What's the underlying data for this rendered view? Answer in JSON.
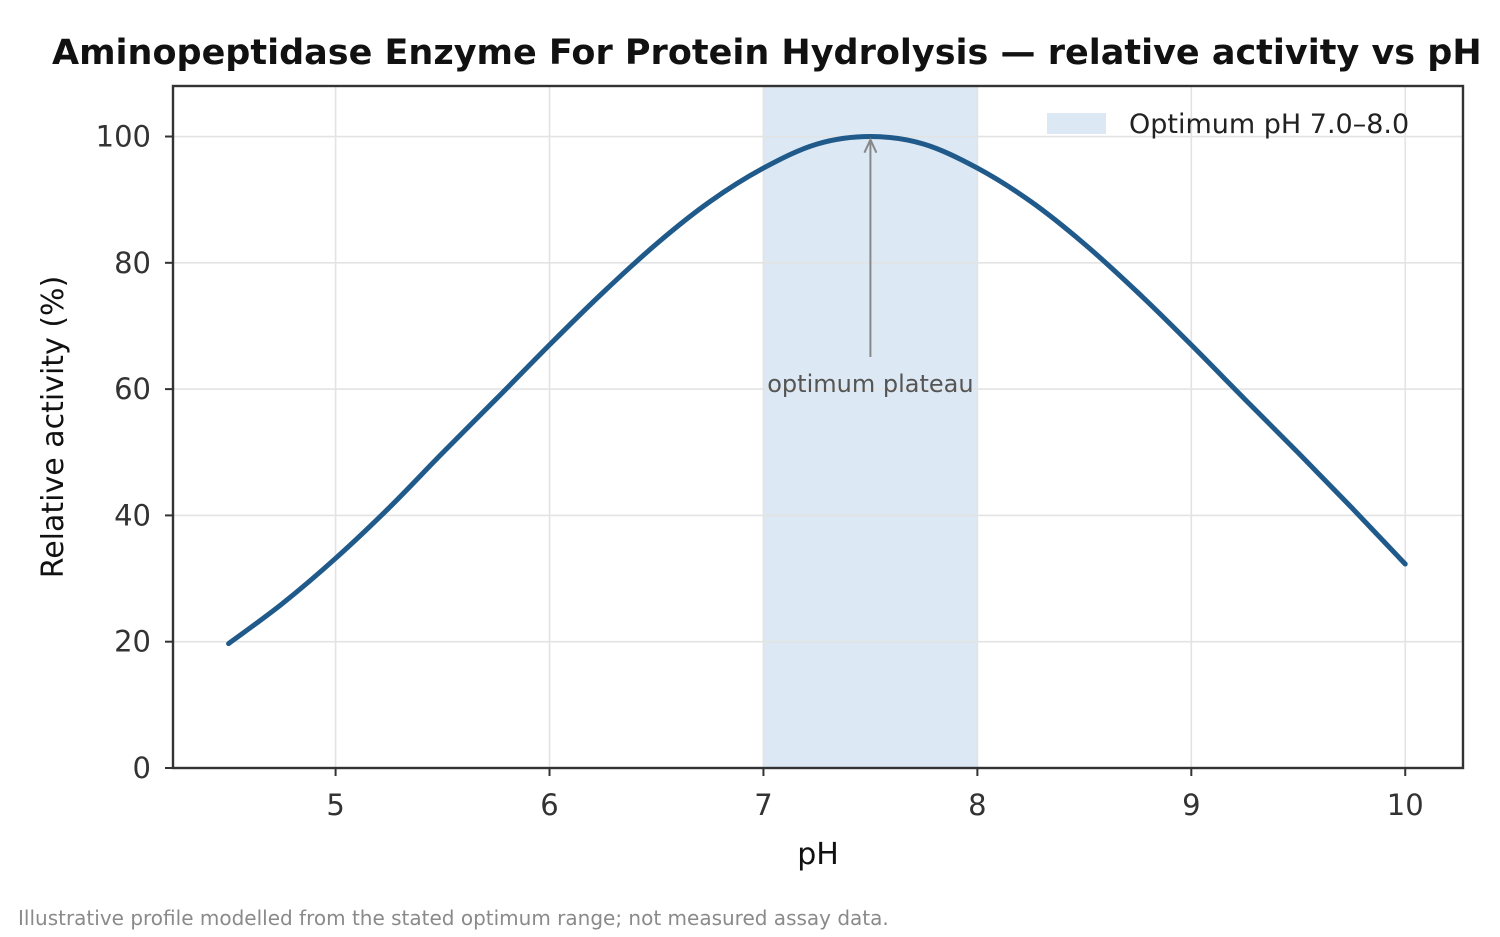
{
  "chart_data": {
    "type": "line",
    "title": "Aminopeptidase Enzyme For Protein Hydrolysis — relative activity vs pH",
    "xlabel": "pH",
    "ylabel": "Relative activity (%)",
    "xlim": [
      4.24,
      10.27
    ],
    "ylim": [
      0,
      108
    ],
    "xticks": [
      5,
      6,
      7,
      8,
      9,
      10
    ],
    "yticks": [
      0,
      20,
      40,
      60,
      80,
      100
    ],
    "grid": true,
    "legend_position": "top-right",
    "optimum_band": {
      "from": 7.0,
      "to": 8.0,
      "label": "Optimum pH 7.0–8.0",
      "color": "#dce8f3"
    },
    "series": [
      {
        "color": "#1f5a8b",
        "x": [
          4.5,
          4.75,
          5.0,
          5.25,
          5.5,
          5.75,
          6.0,
          6.25,
          6.5,
          6.75,
          7.0,
          7.25,
          7.5,
          7.75,
          8.0,
          8.25,
          8.5,
          8.75,
          9.0,
          9.25,
          9.5,
          9.75,
          10.0
        ],
        "y": [
          19.7,
          26.0,
          33.2,
          41.2,
          49.9,
          58.4,
          67.0,
          75.3,
          83.0,
          89.7,
          95.0,
          98.8,
          100.0,
          98.8,
          95.0,
          89.7,
          83.0,
          75.3,
          67.0,
          58.4,
          49.9,
          41.2,
          32.3
        ]
      }
    ],
    "annotations": [
      {
        "text": "optimum plateau",
        "arrow_to": {
          "x": 7.5,
          "y": 99.5
        },
        "text_at": {
          "x": 7.5,
          "y": 60.5
        }
      }
    ]
  },
  "footnote": "Illustrative profile modelled from the stated optimum range; not measured assay data.",
  "colors": {
    "line": "#1f5a8b",
    "band": "#dce8f3",
    "grid": "#e3e3e3",
    "axis": "#333333",
    "arrow": "#888888"
  }
}
